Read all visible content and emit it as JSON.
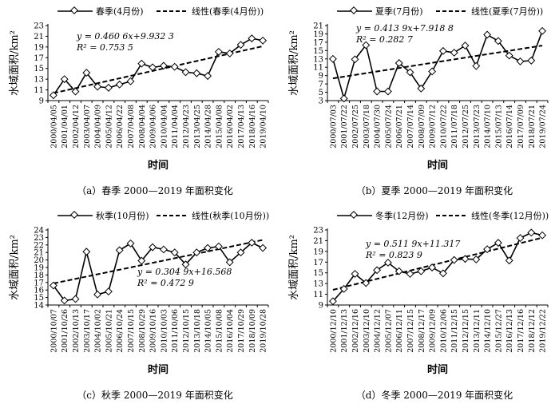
{
  "figure": {
    "charts": [
      {
        "type": "line",
        "caption": "（a）春季 2000—2019 年面积变化",
        "xlabel": "时间",
        "ylabel": "水域面积/km²",
        "ylim": [
          9,
          23
        ],
        "yticks": [
          9,
          11,
          13,
          15,
          17,
          19,
          21,
          23
        ],
        "categories": [
          "2000/04/05",
          "2001/04/01",
          "2002/04/12",
          "2003/04/07",
          "2004/04/09",
          "2005/04/12",
          "2006/04/22",
          "2007/04/08",
          "2008/04/04",
          "2009/04/06",
          "2010/04/04",
          "2011/04/04",
          "2012/04/23",
          "2013/04/25",
          "2014/04/28",
          "2015/04/08",
          "2016/04/02",
          "2017/04/13",
          "2018/04/16",
          "2019/04/10"
        ],
        "series": [
          {
            "name": "春季(4月份)",
            "values": [
              10.0,
              13.0,
              10.7,
              14.2,
              11.6,
              11.4,
              12.0,
              12.6,
              15.9,
              15.2,
              15.5,
              15.3,
              14.3,
              14.1,
              13.6,
              18.1,
              17.8,
              19.4,
              20.6,
              20.2
            ]
          }
        ],
        "trendline": {
          "name": "线性(春季(4月份))",
          "slope": 0.4606,
          "intercept": 9.9323
        },
        "legend": {
          "series": "春季(4月份)",
          "trend": "线性(春季(4月份))"
        },
        "equation": {
          "eq": "y = 0.460 6x+9.932 3",
          "r2": "R² = 0.753 5"
        }
      },
      {
        "type": "line",
        "caption": "（b）夏季 2000—2019 年面积变化",
        "xlabel": "时间",
        "ylabel": "水域面积/km²",
        "ylim": [
          3,
          21
        ],
        "yticks": [
          3,
          5,
          7,
          9,
          11,
          13,
          15,
          17,
          19,
          21
        ],
        "categories": [
          "2000/07/03",
          "2001/07/22",
          "2002/07/25",
          "2003/07/18",
          "2004/07/30",
          "2005/07/24",
          "2006/07/21",
          "2007/07/14",
          "2008/07/09",
          "2009/07/12",
          "2010/07/22",
          "2011/07/18",
          "2012/07/25",
          "2013/07/23",
          "2014/07/10",
          "2015/07/13",
          "2016/07/14",
          "2017/07/09",
          "2018/07/21",
          "2019/07/24"
        ],
        "series": [
          {
            "name": "夏季(7月份)",
            "values": [
              13.0,
              3.5,
              12.9,
              16.3,
              5.2,
              5.2,
              12.0,
              9.8,
              5.9,
              10.0,
              14.9,
              14.5,
              16.2,
              11.3,
              18.8,
              17.3,
              13.8,
              12.4,
              12.6,
              19.7
            ]
          }
        ],
        "trendline": {
          "name": "线性(夏季(7月份))",
          "slope": 0.4139,
          "intercept": 7.9188
        },
        "legend": {
          "series": "夏季(7月份)",
          "trend": "线性(夏季(7月份))"
        },
        "equation": {
          "eq": "y = 0.413 9x+7.918 8",
          "r2": "R² = 0.282 7"
        }
      },
      {
        "type": "line",
        "caption": "（c）秋季 2000—2019 年面积变化",
        "xlabel": "时间",
        "ylabel": "水域面积/km²",
        "ylim": [
          14,
          24
        ],
        "yticks": [
          14,
          15,
          16,
          17,
          18,
          19,
          20,
          21,
          22,
          23,
          24
        ],
        "categories": [
          "2000/10/07",
          "2001/10/26",
          "2002/10/13",
          "2003/10/17",
          "2004/10/02",
          "2005/10/21",
          "2006/10/24",
          "2007/10/15",
          "2008/10/29",
          "2009/10/16",
          "2010/10/03",
          "2011/10/06",
          "2012/10/15",
          "2013/10/18",
          "2014/10/05",
          "2015/10/08",
          "2016/10/04",
          "2017/10/29",
          "2018/10/09",
          "2019/10/28"
        ],
        "series": [
          {
            "name": "秋季(10月份)",
            "values": [
              16.6,
              14.6,
              14.8,
              21.1,
              15.4,
              15.8,
              21.3,
              22.2,
              19.9,
              21.7,
              21.4,
              21.0,
              19.4,
              21.0,
              21.6,
              21.8,
              19.7,
              21.0,
              22.3,
              21.6
            ]
          }
        ],
        "trendline": {
          "name": "线性(秋季(10月份))",
          "slope": 0.3049,
          "intercept": 16.568
        },
        "legend": {
          "series": "秋季(10月份)",
          "trend": "线性(秋季(10月份))"
        },
        "equation": {
          "eq": "y = 0.304 9x+16.568",
          "r2": "R² = 0.472 9"
        }
      },
      {
        "type": "line",
        "caption": "（d）冬季 2000—2019 年面积变化",
        "xlabel": "时间",
        "ylabel": "水域面积/km²",
        "ylim": [
          9,
          23
        ],
        "yticks": [
          9,
          11,
          13,
          15,
          17,
          19,
          21,
          23
        ],
        "categories": [
          "2000/12/10",
          "2001/12/13",
          "2002/12/16",
          "2003/12/10",
          "2004/12/12",
          "2005/12/07",
          "2006/12/11",
          "2007/12/15",
          "2008/12/17",
          "2009/12/09",
          "2010/12/06",
          "2011/12/15",
          "2012/12/15",
          "2013/12/11",
          "2014/12/10",
          "2015/12/27",
          "2016/12/13",
          "2017/12/16",
          "2018/12/12",
          "2019/12/22"
        ],
        "series": [
          {
            "name": "冬季(12月份)",
            "values": [
              9.7,
              12.0,
              14.8,
              13.1,
              15.5,
              16.9,
              15.3,
              14.8,
              15.3,
              16.0,
              14.9,
              17.4,
              17.6,
              17.5,
              19.4,
              20.6,
              17.3,
              21.5,
              22.5,
              22.0
            ]
          }
        ],
        "trendline": {
          "name": "线性(冬季(12月份))",
          "slope": 0.5119,
          "intercept": 11.317
        },
        "legend": {
          "series": "冬季(12月份)",
          "trend": "线性(冬季(12月份))"
        },
        "equation": {
          "eq": "y = 0.511 9x+11.317",
          "r2": "R² = 0.823 9"
        }
      }
    ]
  },
  "chart_data": [
    {
      "type": "line",
      "caption": "（a）春季 2000—2019 年面积变化",
      "xlabel": "时间",
      "ylabel": "水域面积/km²",
      "ylim": [
        9,
        23
      ],
      "categories": [
        "2000/04/05",
        "2001/04/01",
        "2002/04/12",
        "2003/04/07",
        "2004/04/09",
        "2005/04/12",
        "2006/04/22",
        "2007/04/08",
        "2008/04/04",
        "2009/04/06",
        "2010/04/04",
        "2011/04/04",
        "2012/04/23",
        "2013/04/25",
        "2014/04/28",
        "2015/04/08",
        "2016/04/02",
        "2017/04/13",
        "2018/04/16",
        "2019/04/10"
      ],
      "series": [
        {
          "name": "春季(4月份)",
          "values": [
            10.0,
            13.0,
            10.7,
            14.2,
            11.6,
            11.4,
            12.0,
            12.6,
            15.9,
            15.2,
            15.5,
            15.3,
            14.3,
            14.1,
            13.6,
            18.1,
            17.8,
            19.4,
            20.6,
            20.2
          ]
        }
      ],
      "trendline": {
        "name": "线性(春季(4月份))",
        "slope": 0.4606,
        "intercept": 9.9323,
        "r2": 0.7535
      }
    },
    {
      "type": "line",
      "caption": "（b）夏季 2000—2019 年面积变化",
      "xlabel": "时间",
      "ylabel": "水域面积/km²",
      "ylim": [
        3,
        21
      ],
      "categories": [
        "2000/07/03",
        "2001/07/22",
        "2002/07/25",
        "2003/07/18",
        "2004/07/30",
        "2005/07/24",
        "2006/07/21",
        "2007/07/14",
        "2008/07/09",
        "2009/07/12",
        "2010/07/22",
        "2011/07/18",
        "2012/07/25",
        "2013/07/23",
        "2014/07/10",
        "2015/07/13",
        "2016/07/14",
        "2017/07/09",
        "2018/07/21",
        "2019/07/24"
      ],
      "series": [
        {
          "name": "夏季(7月份)",
          "values": [
            13.0,
            3.5,
            12.9,
            16.3,
            5.2,
            5.2,
            12.0,
            9.8,
            5.9,
            10.0,
            14.9,
            14.5,
            16.2,
            11.3,
            18.8,
            17.3,
            13.8,
            12.4,
            12.6,
            19.7
          ]
        }
      ],
      "trendline": {
        "name": "线性(夏季(7月份))",
        "slope": 0.4139,
        "intercept": 7.9188,
        "r2": 0.2827
      }
    },
    {
      "type": "line",
      "caption": "（c）秋季 2000—2019 年面积变化",
      "xlabel": "时间",
      "ylabel": "水域面积/km²",
      "ylim": [
        14,
        24
      ],
      "categories": [
        "2000/10/07",
        "2001/10/26",
        "2002/10/13",
        "2003/10/17",
        "2004/10/02",
        "2005/10/21",
        "2006/10/24",
        "2007/10/15",
        "2008/10/29",
        "2009/10/16",
        "2010/10/03",
        "2011/10/06",
        "2012/10/15",
        "2013/10/18",
        "2014/10/05",
        "2015/10/08",
        "2016/10/04",
        "2017/10/29",
        "2018/10/09",
        "2019/10/28"
      ],
      "series": [
        {
          "name": "秋季(10月份)",
          "values": [
            16.6,
            14.6,
            14.8,
            21.1,
            15.4,
            15.8,
            21.3,
            22.2,
            19.9,
            21.7,
            21.4,
            21.0,
            19.4,
            21.0,
            21.6,
            21.8,
            19.7,
            21.0,
            22.3,
            21.6
          ]
        }
      ],
      "trendline": {
        "name": "线性(秋季(10月份))",
        "slope": 0.3049,
        "intercept": 16.568,
        "r2": 0.4729
      }
    },
    {
      "type": "line",
      "caption": "（d）冬季 2000—2019 年面积变化",
      "xlabel": "时间",
      "ylabel": "水域面积/km²",
      "ylim": [
        9,
        23
      ],
      "categories": [
        "2000/12/10",
        "2001/12/13",
        "2002/12/16",
        "2003/12/10",
        "2004/12/12",
        "2005/12/07",
        "2006/12/11",
        "2007/12/15",
        "2008/12/17",
        "2009/12/09",
        "2010/12/06",
        "2011/12/15",
        "2012/12/15",
        "2013/12/11",
        "2014/12/10",
        "2015/12/27",
        "2016/12/13",
        "2017/12/16",
        "2018/12/12",
        "2019/12/22"
      ],
      "series": [
        {
          "name": "冬季(12月份)",
          "values": [
            9.7,
            12.0,
            14.8,
            13.1,
            15.5,
            16.9,
            15.3,
            14.8,
            15.3,
            16.0,
            14.9,
            17.4,
            17.6,
            17.5,
            19.4,
            20.6,
            17.3,
            21.5,
            22.5,
            22.0
          ]
        }
      ],
      "trendline": {
        "name": "线性(冬季(12月份))",
        "slope": 0.5119,
        "intercept": 11.317,
        "r2": 0.8239
      }
    }
  ],
  "colors": {
    "line": "#000000",
    "marker_fill": "#ffffff",
    "marker_stroke": "#000000"
  }
}
